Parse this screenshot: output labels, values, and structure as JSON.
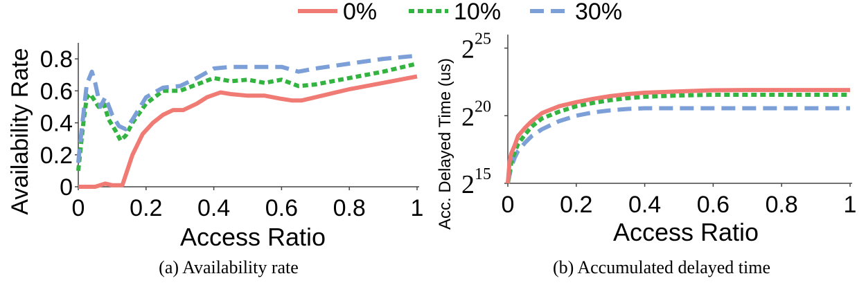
{
  "legend": {
    "items": [
      {
        "label": "0%",
        "color": "#f07a74",
        "dash": "solid"
      },
      {
        "label": "10%",
        "color": "#33b33f",
        "dash": "dotted"
      },
      {
        "label": "30%",
        "color": "#7b9fd6",
        "dash": "dashed"
      }
    ]
  },
  "chart_data": [
    {
      "type": "line",
      "caption": "(a) Availability rate",
      "xlabel": "Access Ratio",
      "ylabel": "Availability Rate",
      "xlim": [
        0,
        1
      ],
      "ylim": [
        0,
        0.9
      ],
      "xticks": [
        0,
        0.2,
        0.4,
        0.6,
        0.8,
        1
      ],
      "xtick_labels": [
        "0",
        "0.2",
        "0.4",
        "0.6",
        "0.8",
        "1"
      ],
      "yticks": [
        0,
        0.2,
        0.4,
        0.6,
        0.8
      ],
      "ytick_labels": [
        "0",
        "0.2",
        "0.4",
        "0.6",
        "0.8"
      ],
      "grid": false,
      "series": [
        {
          "name": "0%",
          "x": [
            0,
            0.05,
            0.08,
            0.1,
            0.13,
            0.16,
            0.19,
            0.22,
            0.25,
            0.28,
            0.31,
            0.35,
            0.38,
            0.42,
            0.45,
            0.5,
            0.55,
            0.6,
            0.63,
            0.66,
            0.7,
            0.8,
            0.9,
            1.0
          ],
          "y": [
            0,
            0,
            0.02,
            0.01,
            0.01,
            0.2,
            0.33,
            0.4,
            0.45,
            0.48,
            0.48,
            0.52,
            0.56,
            0.59,
            0.58,
            0.57,
            0.57,
            0.55,
            0.54,
            0.54,
            0.56,
            0.61,
            0.65,
            0.69
          ]
        },
        {
          "name": "10%",
          "x": [
            0,
            0.005,
            0.015,
            0.025,
            0.035,
            0.045,
            0.06,
            0.075,
            0.09,
            0.11,
            0.125,
            0.14,
            0.16,
            0.2,
            0.25,
            0.3,
            0.35,
            0.4,
            0.45,
            0.5,
            0.55,
            0.6,
            0.65,
            0.7,
            0.8,
            0.9,
            1.0
          ],
          "y": [
            0.1,
            0.2,
            0.4,
            0.56,
            0.58,
            0.55,
            0.5,
            0.52,
            0.42,
            0.35,
            0.29,
            0.32,
            0.4,
            0.52,
            0.6,
            0.6,
            0.64,
            0.68,
            0.66,
            0.67,
            0.65,
            0.67,
            0.63,
            0.64,
            0.68,
            0.72,
            0.77
          ]
        },
        {
          "name": "30%",
          "x": [
            0,
            0.005,
            0.015,
            0.025,
            0.04,
            0.05,
            0.065,
            0.08,
            0.1,
            0.12,
            0.14,
            0.16,
            0.2,
            0.25,
            0.3,
            0.35,
            0.4,
            0.45,
            0.5,
            0.55,
            0.6,
            0.65,
            0.7,
            0.8,
            0.9,
            1.0
          ],
          "y": [
            0.15,
            0.26,
            0.45,
            0.64,
            0.72,
            0.65,
            0.5,
            0.56,
            0.45,
            0.38,
            0.36,
            0.42,
            0.56,
            0.62,
            0.63,
            0.68,
            0.74,
            0.75,
            0.75,
            0.75,
            0.75,
            0.72,
            0.74,
            0.77,
            0.8,
            0.82
          ]
        }
      ]
    },
    {
      "type": "line",
      "caption": "(b) Accumulated delayed time",
      "xlabel": "Access Ratio",
      "ylabel": "Acc. Delayed Time (us)",
      "y_scale": "log2",
      "xlim": [
        0,
        1
      ],
      "ylim_exponent": [
        15,
        26
      ],
      "xticks": [
        0,
        0.2,
        0.4,
        0.6,
        0.8,
        1
      ],
      "xtick_labels": [
        "0",
        "0.2",
        "0.4",
        "0.6",
        "0.8",
        "1"
      ],
      "ytick_exponents": [
        15,
        20,
        25
      ],
      "ytick_base": "2",
      "ytick_exps": [
        "15",
        "20",
        "25"
      ],
      "grid": false,
      "series": [
        {
          "name": "0%",
          "x": [
            0,
            0.005,
            0.01,
            0.02,
            0.03,
            0.05,
            0.07,
            0.1,
            0.15,
            0.2,
            0.25,
            0.3,
            0.35,
            0.4,
            0.5,
            0.6,
            0.7,
            0.8,
            0.9,
            1.0
          ],
          "y_exponent": [
            15.0,
            16.6,
            17.2,
            17.8,
            18.5,
            19.1,
            19.6,
            20.2,
            20.7,
            21.0,
            21.25,
            21.45,
            21.6,
            21.7,
            21.8,
            21.88,
            21.9,
            21.9,
            21.9,
            21.9
          ]
        },
        {
          "name": "10%",
          "x": [
            0,
            0.005,
            0.01,
            0.02,
            0.03,
            0.05,
            0.07,
            0.1,
            0.15,
            0.2,
            0.25,
            0.3,
            0.35,
            0.4,
            0.5,
            0.6,
            0.7,
            0.8,
            0.9,
            1.0
          ],
          "y_exponent": [
            15.0,
            15.8,
            16.5,
            17.3,
            17.9,
            18.6,
            19.2,
            19.8,
            20.3,
            20.7,
            20.95,
            21.15,
            21.3,
            21.4,
            21.5,
            21.55,
            21.55,
            21.55,
            21.55,
            21.55
          ]
        },
        {
          "name": "30%",
          "x": [
            0,
            0.005,
            0.01,
            0.02,
            0.03,
            0.05,
            0.07,
            0.1,
            0.15,
            0.2,
            0.25,
            0.3,
            0.35,
            0.4,
            0.5,
            0.6,
            0.7,
            0.8,
            0.9,
            1.0
          ],
          "y_exponent": [
            15.0,
            15.6,
            16.2,
            16.9,
            17.4,
            18.0,
            18.5,
            19.0,
            19.6,
            20.0,
            20.25,
            20.4,
            20.5,
            20.55,
            20.55,
            20.55,
            20.55,
            20.55,
            20.55,
            20.55
          ]
        }
      ]
    }
  ]
}
